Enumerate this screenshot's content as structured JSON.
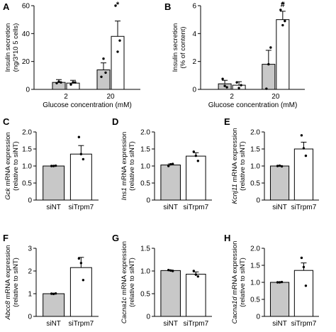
{
  "chart_data": [
    {
      "panel": "A",
      "type": "bar",
      "categories": [
        "2",
        "20"
      ],
      "series": [
        {
          "color": "#c8c8c8",
          "values": [
            5,
            14
          ],
          "errors": [
            2,
            5
          ],
          "points": [
            [
              4.5,
              5.5,
              5
            ],
            [
              9,
              22,
              12
            ]
          ]
        },
        {
          "color": "#ffffff",
          "values": [
            4.5,
            38
          ],
          "errors": [
            2,
            11
          ],
          "points": [
            [
              3.5,
              5,
              5
            ],
            [
              60,
              27,
              35
            ]
          ]
        }
      ],
      "ylabel_lines": [
        "Insulin secretion",
        "(ng/3*10 5 cells)"
      ],
      "xlabel": "Glucose concentration (mM)",
      "ylim": [
        0,
        60
      ],
      "yticks": [
        0,
        20,
        40,
        60
      ],
      "annotations": [
        {
          "text": "*",
          "category": 1,
          "series": 1
        }
      ]
    },
    {
      "panel": "B",
      "type": "bar",
      "categories": [
        "2",
        "20"
      ],
      "series": [
        {
          "color": "#c8c8c8",
          "values": [
            0.4,
            1.8
          ],
          "errors": [
            0.25,
            1.0
          ],
          "points": [
            [
              0.75,
              0.25,
              0.15
            ],
            [
              0.05,
              1.8,
              3.0
            ]
          ]
        },
        {
          "color": "#ffffff",
          "values": [
            0.3,
            5.0
          ],
          "errors": [
            0.25,
            0.6
          ],
          "points": [
            [
              0.5,
              0.1,
              0.3
            ],
            [
              5.7,
              4.6,
              4.9
            ]
          ]
        }
      ],
      "ylabel_lines": [
        "Insulin secretion",
        "(% of content)"
      ],
      "xlabel": "Glucose concentration (mM)",
      "ylim": [
        0,
        6
      ],
      "yticks": [
        0,
        2,
        4,
        6
      ],
      "annotations": [
        {
          "text": "*",
          "category": 1,
          "series": 1
        },
        {
          "text": "#",
          "category": 1,
          "series": 1
        }
      ]
    },
    {
      "panel": "C",
      "type": "bar",
      "categories": [
        "siNT",
        "siTrpm7"
      ],
      "values": [
        1.0,
        1.35
      ],
      "errors": [
        0.01,
        0.25
      ],
      "colors": [
        "#c8c8c8",
        "#ffffff"
      ],
      "points": [
        [
          1.0,
          1.0,
          1.01
        ],
        [
          1.85,
          1.35,
          1.2
        ]
      ],
      "ylabel_italic": "Gck",
      "ylabel_rest": " mRNA expression",
      "ylabel_line2": "(relative to siNT)",
      "ylim": [
        0,
        2.0
      ],
      "yticks": [
        "0",
        "0.5",
        "1.0",
        "1.5",
        "2.0"
      ]
    },
    {
      "panel": "D",
      "type": "bar",
      "categories": [
        "siNT",
        "siTrpm7"
      ],
      "values": [
        1.03,
        1.29
      ],
      "errors": [
        0.03,
        0.1
      ],
      "colors": [
        "#c8c8c8",
        "#ffffff"
      ],
      "points": [
        [
          1.0,
          1.05,
          1.06
        ],
        [
          1.42,
          1.3,
          1.15
        ]
      ],
      "ylabel_italic": "Ins1",
      "ylabel_rest": " mRNA expression",
      "ylabel_line2": "(relative to siNT)",
      "ylim": [
        0,
        2.0
      ],
      "yticks": [
        "0",
        "0.5",
        "1.0",
        "1.5",
        "2.0"
      ]
    },
    {
      "panel": "E",
      "type": "bar",
      "categories": [
        "siNT",
        "siTrpm7"
      ],
      "values": [
        1.0,
        1.5
      ],
      "errors": [
        0.01,
        0.2
      ],
      "colors": [
        "#c8c8c8",
        "#ffffff"
      ],
      "points": [
        [
          1.0,
          1.01,
          0.99
        ],
        [
          1.9,
          1.52,
          1.3
        ]
      ],
      "ylabel_italic": "Kcnj11",
      "ylabel_rest": " mRNA expression",
      "ylabel_line2": "(relative to siNT)",
      "ylim": [
        0,
        2.0
      ],
      "yticks": [
        "0",
        "0.5",
        "1.0",
        "1.5",
        "2.0"
      ]
    },
    {
      "panel": "F",
      "type": "bar",
      "categories": [
        "siNT",
        "siTrpm7"
      ],
      "values": [
        1.0,
        2.15
      ],
      "errors": [
        0.02,
        0.45
      ],
      "colors": [
        "#c8c8c8",
        "#ffffff"
      ],
      "points": [
        [
          1.0,
          0.99,
          1.01
        ],
        [
          2.55,
          2.35,
          1.6
        ]
      ],
      "ylabel_italic": "Abcc8",
      "ylabel_rest": " mRNA expression",
      "ylabel_line2": "(relative to siNT)",
      "ylim": [
        0,
        3
      ],
      "yticks": [
        "0",
        "1",
        "2",
        "3"
      ]
    },
    {
      "panel": "G",
      "type": "bar",
      "categories": [
        "siNT",
        "siTrpm7"
      ],
      "values": [
        1.01,
        0.93
      ],
      "errors": [
        0.01,
        0.05
      ],
      "colors": [
        "#c8c8c8",
        "#ffffff"
      ],
      "points": [
        [
          1.02,
          1.01,
          1.0
        ],
        [
          1.0,
          0.92,
          0.88
        ]
      ],
      "ylabel_italic": "Cacna1c",
      "ylabel_rest": " mRNA expression",
      "ylabel_line2": "(relative to siNT)",
      "ylim": [
        0,
        1.5
      ],
      "yticks": [
        "0",
        "0.5",
        "1.0",
        "1.5"
      ]
    },
    {
      "panel": "H",
      "type": "bar",
      "categories": [
        "siNT",
        "siTrpm7"
      ],
      "values": [
        1.0,
        1.35
      ],
      "errors": [
        0.01,
        0.22
      ],
      "colors": [
        "#c8c8c8",
        "#ffffff"
      ],
      "points": [
        [
          1.0,
          1.0,
          1.01
        ],
        [
          1.72,
          1.45,
          0.9
        ]
      ],
      "ylabel_italic": "Cacna1d",
      "ylabel_rest": " mRNA expression",
      "ylabel_line2": "(relative to siNT)",
      "ylim": [
        0,
        2.0
      ],
      "yticks": [
        "0",
        "0.5",
        "1.0",
        "1.5",
        "2.0"
      ]
    }
  ]
}
